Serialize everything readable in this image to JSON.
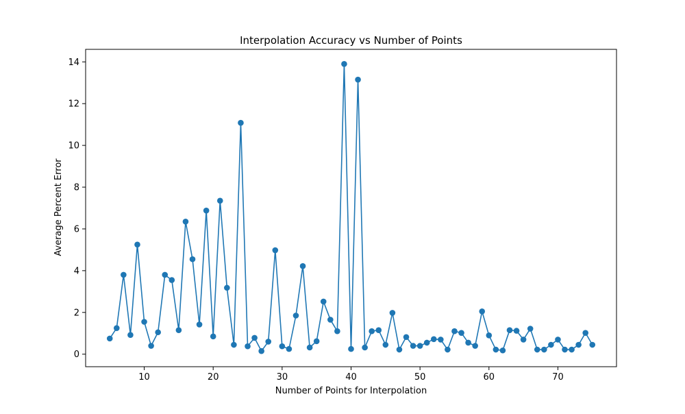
{
  "chart_data": {
    "type": "line",
    "title": "Interpolation Accuracy vs Number of Points",
    "xlabel": "Number of Points for Interpolation",
    "ylabel": "Average Percent Error",
    "xlim": [
      1.5,
      78.5
    ],
    "ylim": [
      -0.6,
      14.6
    ],
    "xticks": [
      10,
      20,
      30,
      40,
      50,
      60,
      70
    ],
    "yticks": [
      0,
      2,
      4,
      6,
      8,
      10,
      12,
      14
    ],
    "grid": false,
    "legend": "none",
    "series": [
      {
        "color": "#1f77b4",
        "marker": "circle",
        "x": [
          5,
          6,
          7,
          8,
          9,
          10,
          11,
          12,
          13,
          14,
          15,
          16,
          17,
          18,
          19,
          20,
          21,
          22,
          23,
          24,
          25,
          26,
          27,
          28,
          29,
          30,
          31,
          32,
          33,
          34,
          35,
          36,
          37,
          38,
          39,
          40,
          41,
          42,
          43,
          44,
          45,
          46,
          47,
          48,
          49,
          50,
          51,
          52,
          53,
          54,
          55,
          56,
          57,
          58,
          59,
          60,
          61,
          62,
          63,
          64,
          65,
          66,
          67,
          68,
          69,
          70,
          71,
          72,
          73,
          74,
          75
        ],
        "y": [
          0.75,
          1.25,
          3.8,
          0.92,
          5.25,
          1.55,
          0.4,
          1.05,
          3.8,
          3.55,
          1.15,
          6.35,
          4.55,
          1.42,
          6.88,
          0.85,
          7.35,
          3.18,
          0.45,
          11.08,
          0.38,
          0.78,
          0.15,
          0.6,
          4.98,
          0.38,
          0.25,
          1.85,
          4.22,
          0.32,
          0.62,
          2.52,
          1.65,
          1.1,
          13.9,
          0.25,
          13.15,
          0.32,
          1.1,
          1.15,
          0.45,
          1.98,
          0.22,
          0.82,
          0.4,
          0.4,
          0.55,
          0.72,
          0.7,
          0.22,
          1.1,
          1.02,
          0.55,
          0.4,
          2.05,
          0.9,
          0.22,
          0.18,
          1.15,
          1.12,
          0.7,
          1.22,
          0.22,
          0.22,
          0.45,
          0.7,
          0.22,
          0.22,
          0.45,
          1.02,
          0.45
        ]
      }
    ]
  }
}
